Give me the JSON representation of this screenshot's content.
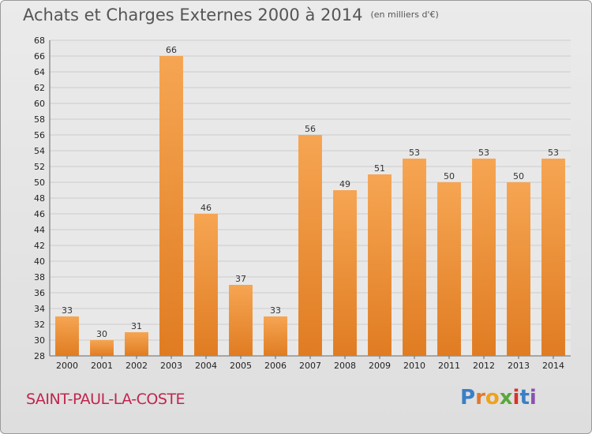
{
  "title": "Achats et Charges Externes 2000 à 2014",
  "subtitle": "(en milliers d'€)",
  "commune": "SAINT-PAUL-LA-COSTE",
  "logo": {
    "letters": [
      "P",
      "r",
      "o",
      "x",
      "i",
      "t",
      "i"
    ],
    "colors": [
      "#3a7fc6",
      "#e2782a",
      "#f0a21c",
      "#5aa83a",
      "#d6342a",
      "#3a7fc6",
      "#8a52b0"
    ]
  },
  "colors": {
    "bar_light": "#f6a552",
    "bar_dark": "#e07c22",
    "grid": "#cccccc"
  },
  "chart_data": {
    "type": "bar",
    "categories": [
      "2000",
      "2001",
      "2002",
      "2003",
      "2004",
      "2005",
      "2006",
      "2007",
      "2008",
      "2009",
      "2010",
      "2011",
      "2012",
      "2013",
      "2014"
    ],
    "values": [
      33,
      30,
      31,
      66,
      46,
      37,
      33,
      56,
      49,
      51,
      53,
      50,
      53,
      50,
      53
    ],
    "ylim": [
      28,
      68
    ],
    "yticks": [
      28,
      30,
      32,
      34,
      36,
      38,
      40,
      42,
      44,
      46,
      48,
      50,
      52,
      54,
      56,
      58,
      60,
      62,
      64,
      66,
      68
    ],
    "grid": true
  }
}
